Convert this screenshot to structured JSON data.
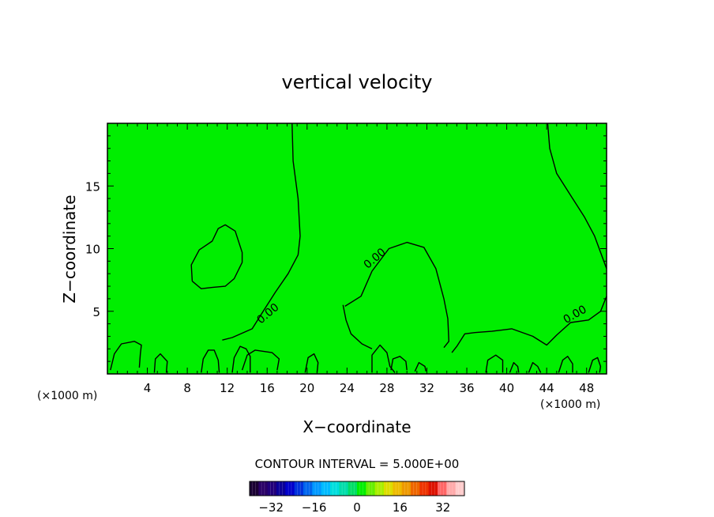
{
  "chart_data": {
    "type": "contour",
    "title": "vertical velocity",
    "xlabel": "X−coordinate",
    "ylabel": "Z−coordinate",
    "x_unit_left": "(×1000 m)",
    "x_unit_right": "(×1000 m)",
    "xlim": [
      0,
      50
    ],
    "ylim": [
      0,
      20
    ],
    "x_ticks": [
      {
        "value": 4,
        "label": "4"
      },
      {
        "value": 8,
        "label": "8"
      },
      {
        "value": 12,
        "label": "12"
      },
      {
        "value": 16,
        "label": "16"
      },
      {
        "value": 20,
        "label": "20"
      },
      {
        "value": 24,
        "label": "24"
      },
      {
        "value": 28,
        "label": "28"
      },
      {
        "value": 32,
        "label": "32"
      },
      {
        "value": 36,
        "label": "36"
      },
      {
        "value": 40,
        "label": "40"
      },
      {
        "value": 44,
        "label": "44"
      },
      {
        "value": 48,
        "label": "48"
      }
    ],
    "y_ticks": [
      {
        "value": 5,
        "label": "5"
      },
      {
        "value": 10,
        "label": "10"
      },
      {
        "value": 15,
        "label": "15"
      }
    ],
    "fill_color": "#00ee00",
    "contour_interval_text": "CONTOUR INTERVAL = 5.000E+00",
    "contour_labels": [
      {
        "x": 16.3,
        "y": 4.6,
        "text": "0.00",
        "angle": -40
      },
      {
        "x": 27.0,
        "y": 9.0,
        "text": "0.00",
        "angle": -40
      },
      {
        "x": 47.0,
        "y": 4.5,
        "text": "0.00",
        "angle": -30
      }
    ],
    "contours": [
      {
        "name": "zero-contour-central",
        "points": [
          [
            18.5,
            20
          ],
          [
            18.6,
            17
          ],
          [
            19.1,
            14
          ],
          [
            19.3,
            11
          ],
          [
            19.1,
            9.5
          ],
          [
            18.1,
            8
          ],
          [
            16.8,
            6.5
          ],
          [
            15.6,
            5
          ],
          [
            14.5,
            3.6
          ],
          [
            12.5,
            2.9
          ],
          [
            11.5,
            2.7
          ]
        ]
      },
      {
        "name": "zero-contour-upper-right",
        "points": [
          [
            44.1,
            20
          ],
          [
            44.3,
            18
          ],
          [
            45,
            16
          ],
          [
            46.6,
            14
          ],
          [
            47.8,
            12.5
          ],
          [
            48.8,
            11
          ],
          [
            50,
            8.4
          ]
        ]
      },
      {
        "name": "zero-contour-lower-right",
        "points": [
          [
            50,
            6.2
          ],
          [
            49.4,
            5
          ],
          [
            48.2,
            4.3
          ],
          [
            46.4,
            4.1
          ],
          [
            45,
            3.1
          ],
          [
            44,
            2.3
          ],
          [
            42.6,
            3
          ],
          [
            40.5,
            3.6
          ],
          [
            38.5,
            3.4
          ],
          [
            36.8,
            3.3
          ],
          [
            35.8,
            3.2
          ],
          [
            35,
            2.2
          ],
          [
            34.5,
            1.7
          ]
        ]
      },
      {
        "name": "zero-contour-mid-dome",
        "points": [
          [
            23.8,
            5.4
          ],
          [
            25.4,
            6.2
          ],
          [
            26.5,
            8.2
          ],
          [
            28.2,
            10
          ],
          [
            30,
            10.5
          ],
          [
            31.7,
            10.1
          ],
          [
            32.9,
            8.4
          ],
          [
            33.7,
            6
          ],
          [
            34.1,
            4.4
          ],
          [
            34.2,
            2.6
          ],
          [
            33.7,
            2.1
          ]
        ]
      },
      {
        "name": "zero-contour-upper-left-blob",
        "points": [
          [
            8.5,
            7.4
          ],
          [
            8.4,
            8.7
          ],
          [
            9.2,
            9.9
          ],
          [
            10.5,
            10.6
          ],
          [
            11.1,
            11.6
          ],
          [
            11.8,
            11.9
          ],
          [
            12.8,
            11.4
          ],
          [
            13.5,
            9.7
          ],
          [
            13.5,
            8.9
          ],
          [
            12.7,
            7.6
          ],
          [
            11.8,
            7.0
          ],
          [
            10.5,
            6.9
          ],
          [
            9.4,
            6.8
          ],
          [
            8.5,
            7.4
          ]
        ]
      },
      {
        "name": "zero-contour-central-lower",
        "points": [
          [
            23.6,
            5.5
          ],
          [
            23.9,
            4.3
          ],
          [
            24.4,
            3.2
          ],
          [
            25.5,
            2.4
          ],
          [
            26.5,
            2.0
          ]
        ]
      },
      {
        "name": "zero-contour-left-edge",
        "points": [
          [
            0.3,
            0.3
          ],
          [
            0.7,
            1.6
          ],
          [
            1.4,
            2.4
          ],
          [
            2.7,
            2.6
          ],
          [
            3.4,
            2.3
          ],
          [
            3.3,
            1.6
          ],
          [
            3.2,
            0.5
          ]
        ]
      },
      {
        "name": "zero-contour-low-1",
        "points": [
          [
            4.7,
            0.1
          ],
          [
            4.8,
            1.2
          ],
          [
            5.3,
            1.6
          ],
          [
            6.0,
            1.0
          ],
          [
            5.9,
            0.1
          ]
        ]
      },
      {
        "name": "zero-contour-low-2",
        "points": [
          [
            9.4,
            0.1
          ],
          [
            9.6,
            1.2
          ],
          [
            10.1,
            1.9
          ],
          [
            10.7,
            1.9
          ],
          [
            11.1,
            1.1
          ],
          [
            11.2,
            0.1
          ]
        ]
      },
      {
        "name": "zero-contour-low-3",
        "points": [
          [
            12.5,
            0.1
          ],
          [
            12.7,
            1.3
          ],
          [
            13.3,
            2.2
          ],
          [
            13.9,
            2.0
          ],
          [
            14.3,
            1.4
          ],
          [
            14.3,
            0.1
          ]
        ]
      },
      {
        "name": "zero-contour-low-4",
        "points": [
          [
            13.5,
            0.3
          ],
          [
            14.0,
            1.5
          ],
          [
            14.8,
            1.9
          ],
          [
            16.5,
            1.7
          ],
          [
            17.2,
            1.2
          ],
          [
            17.0,
            0.3
          ]
        ]
      },
      {
        "name": "zero-contour-low-5",
        "points": [
          [
            26.5,
            0.1
          ],
          [
            26.5,
            1.5
          ],
          [
            27.3,
            2.3
          ],
          [
            28.0,
            1.7
          ],
          [
            28.3,
            0.6
          ],
          [
            28.8,
            0.1
          ]
        ]
      },
      {
        "name": "zero-contour-low-6",
        "points": [
          [
            28.4,
            0.3
          ],
          [
            28.6,
            1.2
          ],
          [
            29.3,
            1.4
          ],
          [
            29.9,
            1.0
          ],
          [
            30,
            0.3
          ]
        ]
      },
      {
        "name": "zero-contour-low-7",
        "points": [
          [
            37.9,
            0.1
          ],
          [
            38.1,
            1.1
          ],
          [
            38.9,
            1.5
          ],
          [
            39.6,
            1.1
          ],
          [
            39.6,
            0.1
          ]
        ]
      },
      {
        "name": "zero-contour-low-8",
        "points": [
          [
            42.2,
            0.1
          ],
          [
            42.6,
            0.9
          ],
          [
            43.1,
            0.6
          ],
          [
            43.4,
            0.1
          ]
        ]
      },
      {
        "name": "zero-contour-low-9",
        "points": [
          [
            45.2,
            0.1
          ],
          [
            45.6,
            1.1
          ],
          [
            46.1,
            1.4
          ],
          [
            46.6,
            0.8
          ],
          [
            46.6,
            0.1
          ]
        ]
      },
      {
        "name": "zero-contour-low-10",
        "points": [
          [
            48.2,
            0.1
          ],
          [
            48.6,
            1.1
          ],
          [
            49.1,
            1.3
          ],
          [
            49.4,
            0.6
          ],
          [
            49.3,
            0.1
          ]
        ]
      },
      {
        "name": "zero-contour-low-11",
        "points": [
          [
            19.8,
            0.1
          ],
          [
            20.1,
            1.3
          ],
          [
            20.7,
            1.6
          ],
          [
            21.1,
            0.9
          ],
          [
            21,
            0.1
          ]
        ]
      },
      {
        "name": "zero-contour-low-12",
        "points": [
          [
            30.8,
            0.2
          ],
          [
            31.2,
            0.9
          ],
          [
            31.8,
            0.6
          ],
          [
            31.9,
            0.2
          ]
        ]
      },
      {
        "name": "zero-contour-low-13",
        "points": [
          [
            40.3,
            0.1
          ],
          [
            40.7,
            0.9
          ],
          [
            41.1,
            0.6
          ],
          [
            41.2,
            0.1
          ]
        ]
      }
    ],
    "colorbar": {
      "min": -40,
      "max": 40,
      "ticks": [
        {
          "value": -32,
          "label": "−32"
        },
        {
          "value": -16,
          "label": "−16"
        },
        {
          "value": 0,
          "label": "0"
        },
        {
          "value": 16,
          "label": "16"
        },
        {
          "value": 32,
          "label": "32"
        }
      ],
      "colors": [
        "#1a0033",
        "#2a0066",
        "#22007a",
        "#0a0099",
        "#0000cc",
        "#0033dd",
        "#0066ee",
        "#0099ff",
        "#00bbff",
        "#00dddd",
        "#00ddaa",
        "#00dd66",
        "#00ee00",
        "#66ee00",
        "#aaee00",
        "#dddd00",
        "#eebb00",
        "#ee9900",
        "#ee6600",
        "#ee3300",
        "#dd1100",
        "#ff6666",
        "#ffaaaa",
        "#ffcccc"
      ]
    }
  }
}
